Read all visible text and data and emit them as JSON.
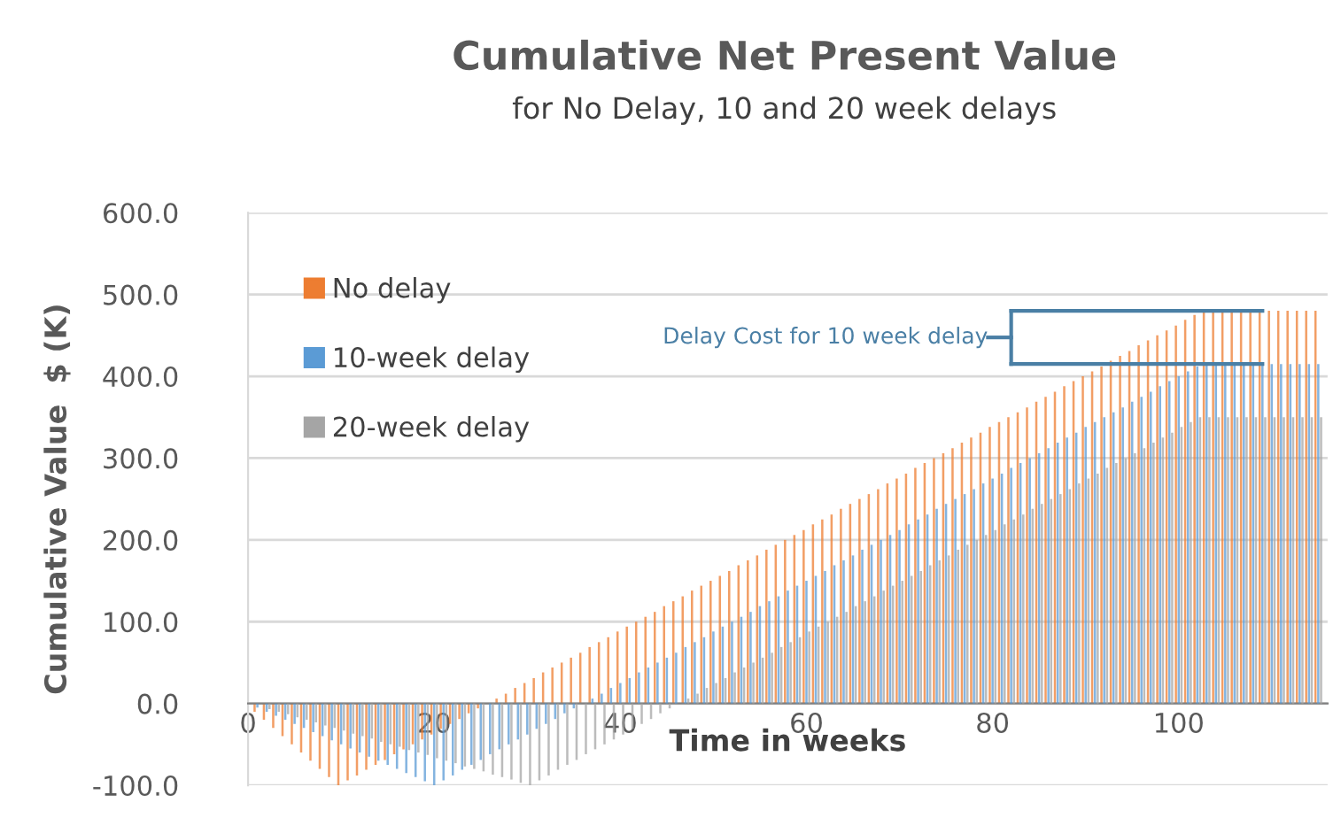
{
  "chart_data": {
    "type": "bar",
    "title": "Cumulative Net Present Value",
    "subtitle": "for No Delay, 10 and 20 week delays",
    "xlabel": "Time in weeks",
    "ylabel": "Cumulative Value  $ (K)",
    "x": [
      0,
      1,
      2,
      3,
      4,
      5,
      6,
      7,
      8,
      9,
      10,
      11,
      12,
      13,
      14,
      15,
      16,
      17,
      18,
      19,
      20,
      21,
      22,
      23,
      24,
      25,
      26,
      27,
      28,
      29,
      30,
      31,
      32,
      33,
      34,
      35,
      36,
      37,
      38,
      39,
      40,
      41,
      42,
      43,
      44,
      45,
      46,
      47,
      48,
      49,
      50,
      51,
      52,
      53,
      54,
      55,
      56,
      57,
      58,
      59,
      60,
      61,
      62,
      63,
      64,
      65,
      66,
      67,
      68,
      69,
      70,
      71,
      72,
      73,
      74,
      75,
      76,
      77,
      78,
      79,
      80,
      81,
      82,
      83,
      84,
      85,
      86,
      87,
      88,
      89,
      90,
      91,
      92,
      93,
      94,
      95,
      96,
      97,
      98,
      99,
      100,
      101,
      102,
      103,
      104,
      105,
      106,
      107,
      108,
      109,
      110,
      111,
      112,
      113,
      114,
      115
    ],
    "series": [
      {
        "name": "No delay",
        "color": "#ed7d31",
        "values": [
          0,
          -10,
          -20,
          -30,
          -40,
          -50,
          -60,
          -70,
          -80,
          -90,
          -100,
          -94,
          -88,
          -81,
          -75,
          -69,
          -62,
          -56,
          -50,
          -44,
          -38,
          -31,
          -25,
          -19,
          -12,
          -6,
          0,
          6,
          12,
          19,
          25,
          31,
          38,
          44,
          50,
          56,
          62,
          69,
          75,
          81,
          88,
          94,
          100,
          106,
          112,
          119,
          125,
          131,
          138,
          144,
          150,
          156,
          162,
          169,
          175,
          181,
          188,
          194,
          200,
          206,
          212,
          219,
          225,
          231,
          238,
          244,
          250,
          256,
          262,
          269,
          275,
          281,
          288,
          294,
          300,
          306,
          312,
          319,
          325,
          331,
          338,
          344,
          350,
          356,
          362,
          369,
          375,
          381,
          388,
          394,
          400,
          406,
          412,
          419,
          425,
          431,
          438,
          444,
          450,
          456,
          462,
          469,
          475,
          480,
          480,
          480,
          480,
          480,
          480,
          480,
          480,
          480,
          480,
          480,
          480,
          480
        ]
      },
      {
        "name": "10-week delay",
        "color": "#5b9bd5",
        "values": [
          0,
          -5,
          -10,
          -15,
          -20,
          -25,
          -30,
          -35,
          -40,
          -45,
          -50,
          -55,
          -60,
          -65,
          -70,
          -75,
          -80,
          -85,
          -90,
          -95,
          -100,
          -94,
          -88,
          -81,
          -75,
          -69,
          -62,
          -56,
          -50,
          -44,
          -38,
          -31,
          -25,
          -19,
          -12,
          -6,
          0,
          6,
          12,
          19,
          25,
          31,
          38,
          44,
          50,
          56,
          62,
          69,
          75,
          81,
          88,
          94,
          100,
          106,
          112,
          119,
          125,
          131,
          138,
          144,
          150,
          156,
          162,
          169,
          175,
          181,
          188,
          194,
          200,
          206,
          212,
          219,
          225,
          231,
          238,
          244,
          250,
          256,
          262,
          269,
          275,
          281,
          288,
          294,
          300,
          306,
          312,
          319,
          325,
          331,
          338,
          344,
          350,
          356,
          362,
          369,
          375,
          381,
          388,
          394,
          400,
          406,
          412,
          415,
          415,
          415,
          415,
          415,
          415,
          415,
          415,
          415,
          415,
          415,
          415,
          415
        ]
      },
      {
        "name": "20-week delay",
        "color": "#a5a5a5",
        "values": [
          0,
          null,
          -7,
          -10,
          -13,
          -17,
          -20,
          -23,
          -27,
          -30,
          -33,
          -37,
          -40,
          -43,
          -47,
          -50,
          -53,
          -57,
          -60,
          -63,
          -67,
          -70,
          -73,
          -77,
          -80,
          -83,
          -87,
          -90,
          -93,
          -97,
          -100,
          -94,
          -88,
          -81,
          -75,
          -69,
          -62,
          -56,
          -50,
          -44,
          -38,
          -31,
          -25,
          -19,
          -12,
          -6,
          0,
          6,
          12,
          19,
          25,
          31,
          38,
          44,
          50,
          56,
          62,
          69,
          75,
          81,
          88,
          94,
          100,
          106,
          112,
          119,
          125,
          131,
          138,
          144,
          150,
          156,
          162,
          169,
          175,
          181,
          188,
          194,
          200,
          206,
          212,
          219,
          225,
          231,
          238,
          244,
          250,
          256,
          262,
          269,
          275,
          281,
          288,
          294,
          300,
          306,
          312,
          319,
          325,
          331,
          338,
          344,
          350,
          350,
          350,
          350,
          350,
          350,
          350,
          350,
          350,
          350,
          350,
          350,
          350,
          350
        ]
      }
    ],
    "xlim": [
      0,
      116
    ],
    "xticks": [
      0,
      20,
      40,
      60,
      80,
      100
    ],
    "ylim": [
      -100,
      600
    ],
    "yticks": [
      {
        "value": -100,
        "label": "-100.0"
      },
      {
        "value": 0,
        "label": "0.0"
      },
      {
        "value": 100,
        "label": "100.0"
      },
      {
        "value": 200,
        "label": "200.0"
      },
      {
        "value": 300,
        "label": "300.0"
      },
      {
        "value": 400,
        "label": "400.0"
      },
      {
        "value": 500,
        "label": "500.0"
      },
      {
        "value": 600,
        "label": "600.0"
      }
    ],
    "grid": "y",
    "legend": "top left",
    "annotations": [
      {
        "text": "Delay Cost for 10 week delay",
        "x": 108,
        "y": 480
      }
    ]
  }
}
